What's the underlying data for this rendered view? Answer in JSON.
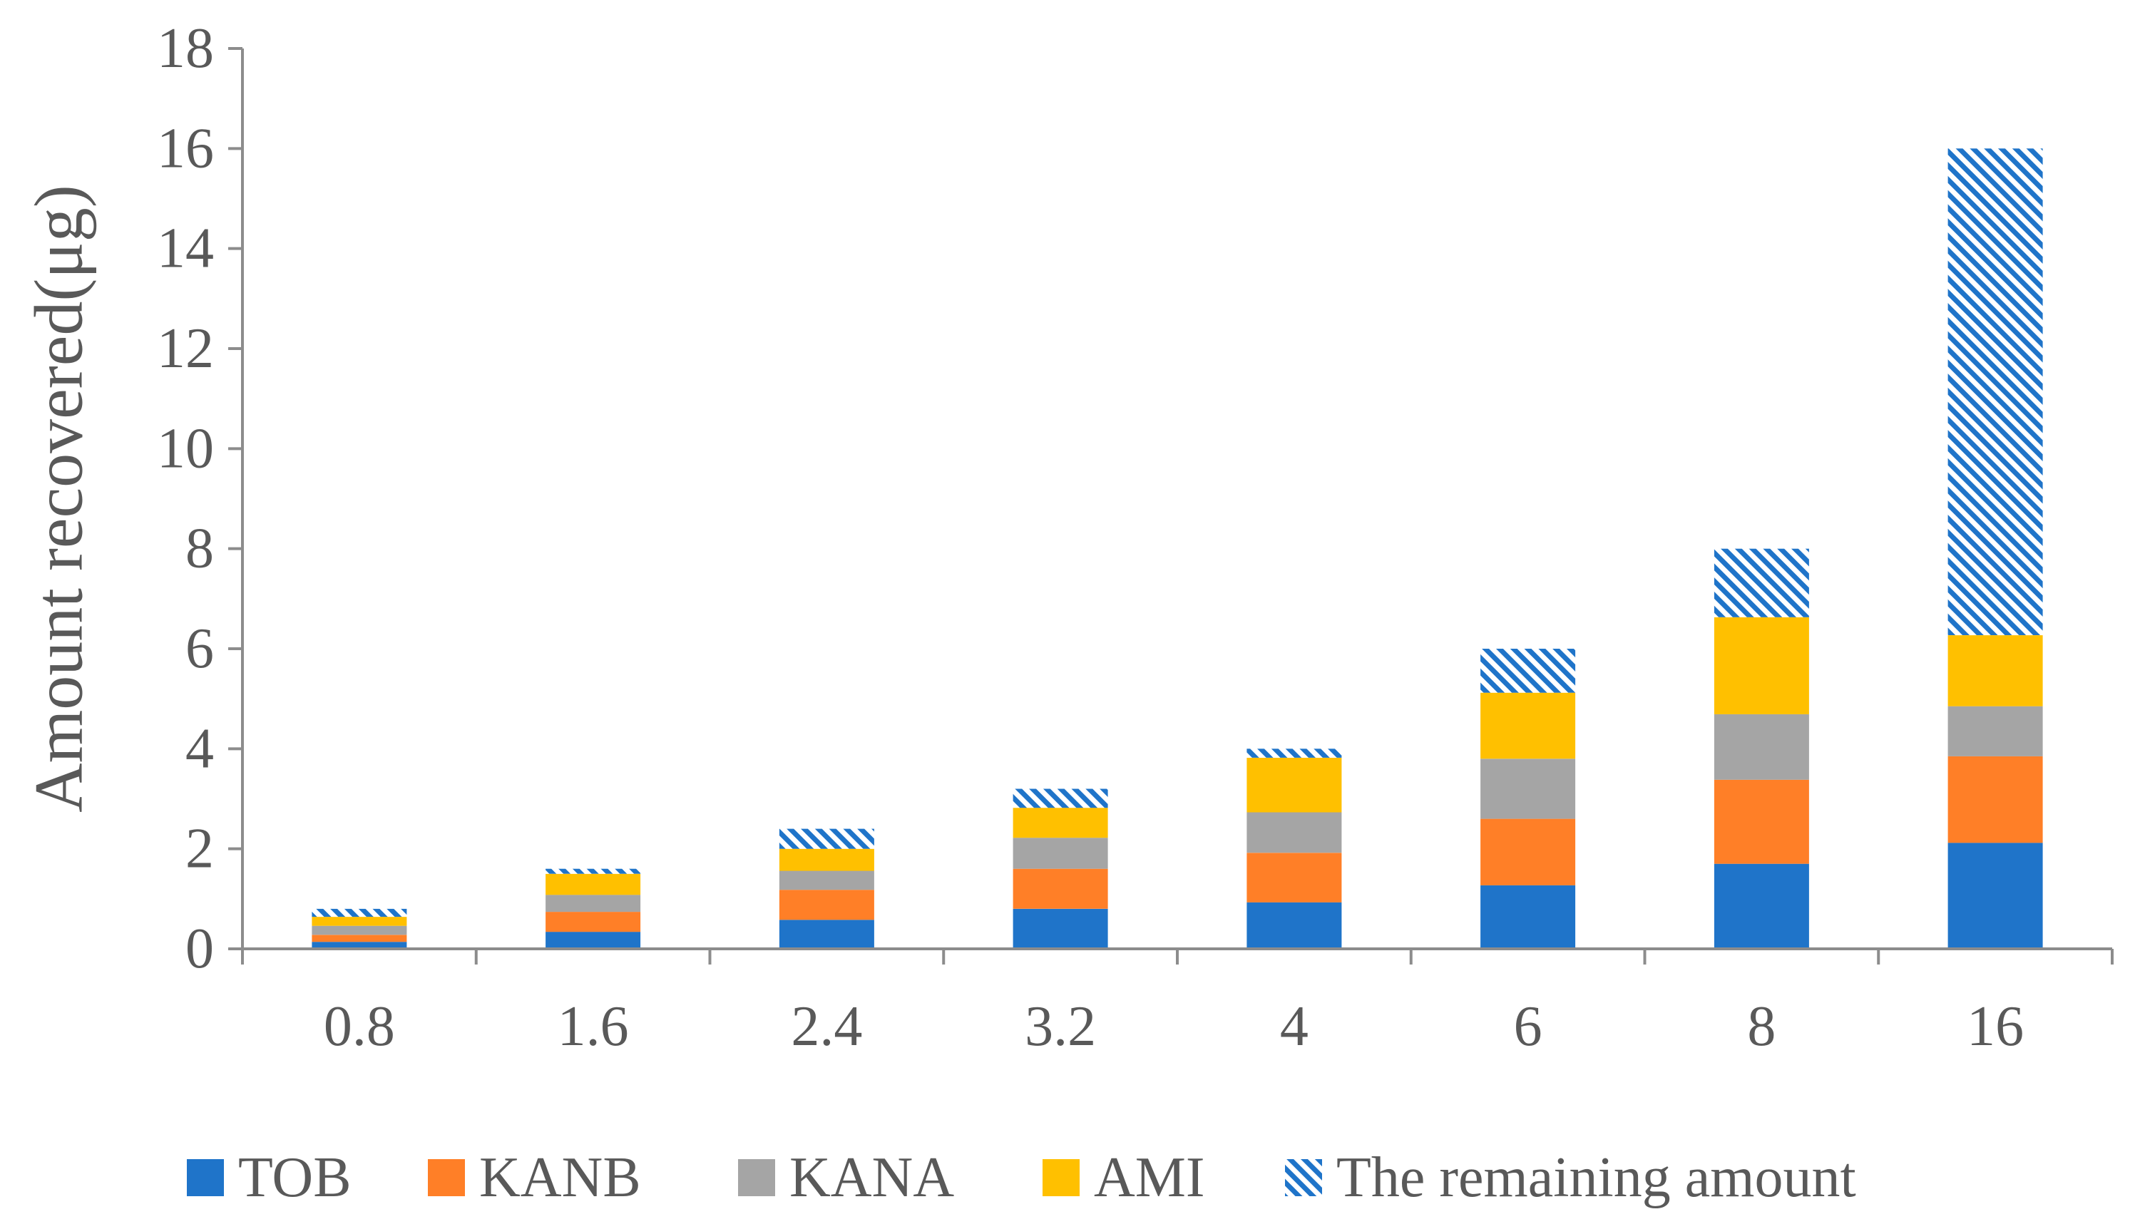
{
  "chart_data": {
    "type": "bar",
    "stacked": true,
    "ylabel": "Amount recovered(μg)",
    "xlabel": "",
    "ylim": [
      0,
      18
    ],
    "yticks": [
      "0",
      "2",
      "4",
      "6",
      "8",
      "10",
      "12",
      "14",
      "16",
      "18"
    ],
    "categories": [
      "0.8",
      "1.6",
      "2.4",
      "3.2",
      "4",
      "6",
      "8",
      "16"
    ],
    "grid": false,
    "legend_position": "bottom",
    "series": [
      {
        "name": "TOB",
        "color": "#1F74C9",
        "pattern": "solid",
        "values": [
          0.14,
          0.34,
          0.58,
          0.8,
          0.93,
          1.27,
          1.7,
          2.12
        ]
      },
      {
        "name": "KANB",
        "color": "#FF7F27",
        "pattern": "solid",
        "values": [
          0.14,
          0.4,
          0.6,
          0.8,
          0.99,
          1.33,
          1.68,
          1.73
        ]
      },
      {
        "name": "KANA",
        "color": "#A5A5A5",
        "pattern": "solid",
        "values": [
          0.18,
          0.34,
          0.38,
          0.62,
          0.81,
          1.2,
          1.31,
          1.0
        ]
      },
      {
        "name": "AMI",
        "color": "#FFC000",
        "pattern": "solid",
        "values": [
          0.18,
          0.42,
          0.44,
          0.6,
          1.09,
          1.32,
          1.94,
          1.42
        ]
      },
      {
        "name": "The remaining amount",
        "color": "#1F74C9",
        "pattern": "hatch",
        "values": [
          0.16,
          0.1,
          0.4,
          0.38,
          0.18,
          0.88,
          1.37,
          9.73
        ]
      }
    ]
  }
}
